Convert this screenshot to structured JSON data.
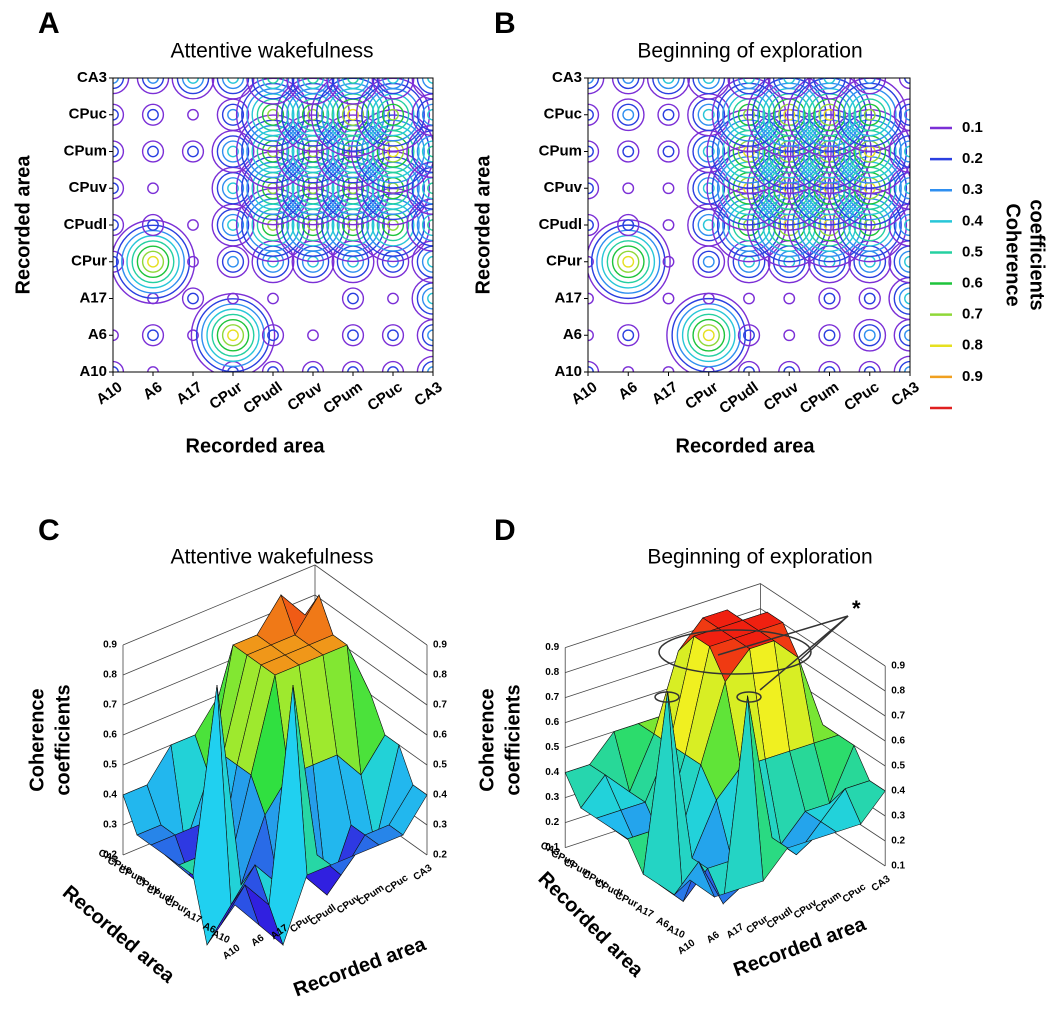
{
  "chart_data": [
    {
      "type": "contour",
      "panel": "A",
      "title": "Attentive wakefulness",
      "xlabel": "Recorded area",
      "ylabel": "Recorded area",
      "categories": [
        "A10",
        "A6",
        "A17",
        "CPur",
        "CPudl",
        "CPuv",
        "CPum",
        "CPuc",
        "CA3"
      ],
      "z": [
        [
          0.3,
          0.2,
          0.1,
          0.3,
          0.3,
          0.3,
          0.3,
          0.3,
          0.4
        ],
        [
          0.2,
          0.3,
          0.2,
          0.9,
          0.3,
          0.2,
          0.3,
          0.3,
          0.4
        ],
        [
          0.1,
          0.2,
          0.3,
          0.2,
          0.2,
          0.1,
          0.3,
          0.2,
          0.5
        ],
        [
          0.3,
          0.9,
          0.2,
          0.4,
          0.5,
          0.5,
          0.5,
          0.4,
          0.5
        ],
        [
          0.3,
          0.3,
          0.2,
          0.5,
          0.8,
          0.8,
          0.8,
          0.8,
          0.6
        ],
        [
          0.3,
          0.2,
          0.1,
          0.5,
          0.8,
          0.8,
          0.8,
          0.8,
          0.6
        ],
        [
          0.3,
          0.3,
          0.3,
          0.5,
          0.8,
          0.8,
          0.8,
          0.9,
          0.6
        ],
        [
          0.3,
          0.3,
          0.2,
          0.4,
          0.8,
          0.8,
          0.9,
          0.8,
          0.5
        ],
        [
          0.4,
          0.4,
          0.5,
          0.5,
          0.6,
          0.6,
          0.6,
          0.5,
          0.5
        ]
      ]
    },
    {
      "type": "contour",
      "panel": "B",
      "title": "Beginning of exploration",
      "xlabel": "Recorded area",
      "ylabel": "Recorded area",
      "categories": [
        "A10",
        "A6",
        "A17",
        "CPur",
        "CPudl",
        "CPuv",
        "CPum",
        "CPuc",
        "CA3"
      ],
      "z": [
        [
          0.3,
          0.2,
          0.2,
          0.2,
          0.3,
          0.3,
          0.3,
          0.3,
          0.4
        ],
        [
          0.2,
          0.3,
          0.1,
          0.9,
          0.3,
          0.2,
          0.3,
          0.4,
          0.4
        ],
        [
          0.2,
          0.1,
          0.2,
          0.2,
          0.2,
          0.2,
          0.3,
          0.3,
          0.5
        ],
        [
          0.2,
          0.9,
          0.2,
          0.4,
          0.5,
          0.5,
          0.5,
          0.5,
          0.5
        ],
        [
          0.3,
          0.3,
          0.2,
          0.5,
          0.8,
          0.9,
          0.9,
          0.8,
          0.5
        ],
        [
          0.3,
          0.2,
          0.2,
          0.5,
          0.9,
          0.9,
          0.9,
          0.9,
          0.5
        ],
        [
          0.3,
          0.3,
          0.3,
          0.5,
          0.9,
          0.9,
          0.9,
          0.9,
          0.5
        ],
        [
          0.3,
          0.4,
          0.3,
          0.5,
          0.8,
          0.9,
          0.9,
          0.8,
          0.4
        ],
        [
          0.4,
          0.4,
          0.5,
          0.5,
          0.5,
          0.5,
          0.5,
          0.4,
          0.3
        ]
      ],
      "legend_title": [
        "Coherence",
        "coefficients"
      ],
      "levels": [
        0.1,
        0.2,
        0.3,
        0.4,
        0.5,
        0.6,
        0.7,
        0.8,
        0.9,
        null
      ],
      "colors": [
        "#7b2fd6",
        "#2a3fe0",
        "#2f8ff0",
        "#27c6d8",
        "#25d0a0",
        "#1ec43b",
        "#8fd838",
        "#e6e020",
        "#f0a020",
        "#e02020"
      ]
    },
    {
      "type": "surface",
      "panel": "C",
      "title": "Attentive wakefulness",
      "xlabel": "Recorded area",
      "ylabel": "Recorded area",
      "zlabel": [
        "Coherence",
        "coefficients"
      ],
      "categories": [
        "A10",
        "A6",
        "A17",
        "CPur",
        "CPudl",
        "CPuv",
        "CPum",
        "CPuc",
        "CA3"
      ],
      "z": [
        [
          0.3,
          0.2,
          0.1,
          0.3,
          0.3,
          0.3,
          0.3,
          0.3,
          0.4
        ],
        [
          0.2,
          0.3,
          0.2,
          0.9,
          0.3,
          0.2,
          0.3,
          0.3,
          0.4
        ],
        [
          0.1,
          0.2,
          0.3,
          0.2,
          0.2,
          0.1,
          0.3,
          0.2,
          0.5
        ],
        [
          0.3,
          0.9,
          0.2,
          0.4,
          0.5,
          0.5,
          0.5,
          0.4,
          0.5
        ],
        [
          0.3,
          0.3,
          0.2,
          0.5,
          0.8,
          0.8,
          0.8,
          0.8,
          0.6
        ],
        [
          0.3,
          0.2,
          0.1,
          0.5,
          0.8,
          0.8,
          0.8,
          0.8,
          0.6
        ],
        [
          0.3,
          0.3,
          0.3,
          0.5,
          0.8,
          0.8,
          0.8,
          0.9,
          0.6
        ],
        [
          0.3,
          0.3,
          0.2,
          0.4,
          0.8,
          0.8,
          0.9,
          0.8,
          0.5
        ],
        [
          0.4,
          0.4,
          0.5,
          0.5,
          0.6,
          0.6,
          0.6,
          0.5,
          0.5
        ]
      ],
      "zlim": [
        0.2,
        0.9
      ],
      "zticks": [
        0.2,
        0.3,
        0.4,
        0.5,
        0.6,
        0.7,
        0.8,
        0.9
      ],
      "colors": [
        "#3020e0",
        "#20d0f0",
        "#30e040",
        "#f0f020",
        "#f02010"
      ]
    },
    {
      "type": "surface",
      "panel": "D",
      "title": "Beginning of exploration",
      "xlabel": "Recorded area",
      "ylabel": "Recorded area",
      "zlabel": [
        "Coherence",
        "coefficients"
      ],
      "annotation": "*",
      "categories": [
        "A10",
        "A6",
        "A17",
        "CPur",
        "CPudl",
        "CPuv",
        "CPum",
        "CPuc",
        "CA3"
      ],
      "z": [
        [
          0.3,
          0.2,
          0.2,
          0.2,
          0.3,
          0.3,
          0.3,
          0.3,
          0.4
        ],
        [
          0.2,
          0.3,
          0.1,
          0.9,
          0.3,
          0.2,
          0.3,
          0.4,
          0.4
        ],
        [
          0.2,
          0.1,
          0.2,
          0.2,
          0.2,
          0.2,
          0.3,
          0.3,
          0.5
        ],
        [
          0.2,
          0.9,
          0.2,
          0.4,
          0.5,
          0.5,
          0.5,
          0.5,
          0.5
        ],
        [
          0.3,
          0.3,
          0.2,
          0.5,
          0.8,
          0.9,
          0.9,
          0.8,
          0.5
        ],
        [
          0.3,
          0.2,
          0.2,
          0.5,
          0.9,
          0.9,
          0.9,
          0.9,
          0.5
        ],
        [
          0.3,
          0.3,
          0.3,
          0.5,
          0.9,
          0.9,
          0.9,
          0.9,
          0.5
        ],
        [
          0.3,
          0.4,
          0.3,
          0.5,
          0.8,
          0.9,
          0.9,
          0.8,
          0.4
        ],
        [
          0.4,
          0.4,
          0.5,
          0.5,
          0.5,
          0.5,
          0.5,
          0.4,
          0.3
        ]
      ],
      "zlim": [
        0.1,
        0.9
      ],
      "zticks": [
        0.1,
        0.2,
        0.3,
        0.4,
        0.5,
        0.6,
        0.7,
        0.8,
        0.9
      ],
      "colors": [
        "#3020e0",
        "#20d0f0",
        "#30e040",
        "#f0f020",
        "#f02010"
      ]
    }
  ]
}
